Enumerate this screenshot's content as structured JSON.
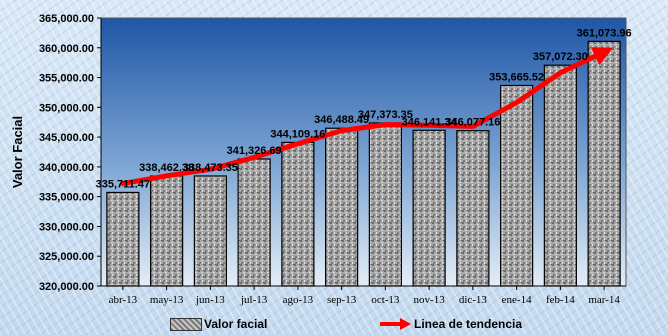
{
  "chart_data": {
    "type": "bar",
    "title": "",
    "xlabel": "",
    "ylabel": "Valor Facial",
    "ylim": [
      320000,
      365000
    ],
    "y_ticks": [
      "320,000.00",
      "325,000.00",
      "330,000.00",
      "335,000.00",
      "340,000.00",
      "345,000.00",
      "350,000.00",
      "355,000.00",
      "360,000.00",
      "365,000.00"
    ],
    "categories": [
      "abr-13",
      "may-13",
      "jun-13",
      "jul-13",
      "ago-13",
      "sep-13",
      "oct-13",
      "nov-13",
      "dic-13",
      "ene-14",
      "feb-14",
      "mar-14"
    ],
    "series": [
      {
        "name": "Valor facial",
        "type": "bar",
        "values": [
          335711.47,
          338462.38,
          338473.35,
          341326.69,
          344109.16,
          346488.49,
          347373.35,
          346141.34,
          346077.16,
          353665.52,
          357072.3,
          361073.96
        ],
        "labels": [
          "335,711.47",
          "338,462.38",
          "338,473.35",
          "341,326.69",
          "344,109.16",
          "346,488.49",
          "347,373.35",
          "346,141.34",
          "346,077.16",
          "353,665.52",
          "357,072.30",
          "361,073.96"
        ]
      },
      {
        "name": "Linea de tendencia",
        "type": "line",
        "values": [
          337200,
          338500,
          339600,
          341600,
          343900,
          346100,
          347100,
          347000,
          346800,
          350800,
          355800,
          359300
        ]
      }
    ],
    "legend_position": "bottom",
    "grid": false,
    "colors": {
      "bar_fill": "#9a9a9a",
      "trend": "#ff0000",
      "plot_top": "#1f56a6",
      "plot_bottom": "#dde8f4"
    }
  }
}
